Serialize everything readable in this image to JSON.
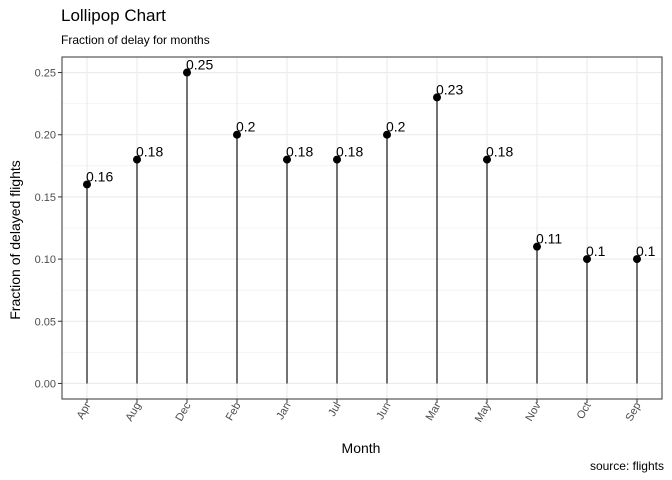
{
  "chart_data": {
    "type": "lollipop",
    "title": "Lollipop Chart",
    "subtitle": "Fraction of delay for months",
    "caption": "source: flights",
    "xlabel": "Month",
    "ylabel": "Fraction of delayed flights",
    "categories": [
      "Apr",
      "Aug",
      "Dec",
      "Feb",
      "Jan",
      "Jul",
      "Jun",
      "Mar",
      "May",
      "Nov",
      "Oct",
      "Sep"
    ],
    "values": [
      0.16,
      0.18,
      0.25,
      0.2,
      0.18,
      0.18,
      0.2,
      0.23,
      0.18,
      0.11,
      0.1,
      0.1
    ],
    "labels": [
      "0.16",
      "0.18",
      "0.25",
      "0.2",
      "0.18",
      "0.18",
      "0.2",
      "0.23",
      "0.18",
      "0.11",
      "0.1",
      "0.1"
    ],
    "yticks": [
      "0.00",
      "0.05",
      "0.10",
      "0.15",
      "0.20",
      "0.25"
    ],
    "ylim": [
      -0.0125,
      0.2625
    ],
    "grid": true,
    "point_color": "#000000",
    "grid_color": "#ebebeb"
  }
}
